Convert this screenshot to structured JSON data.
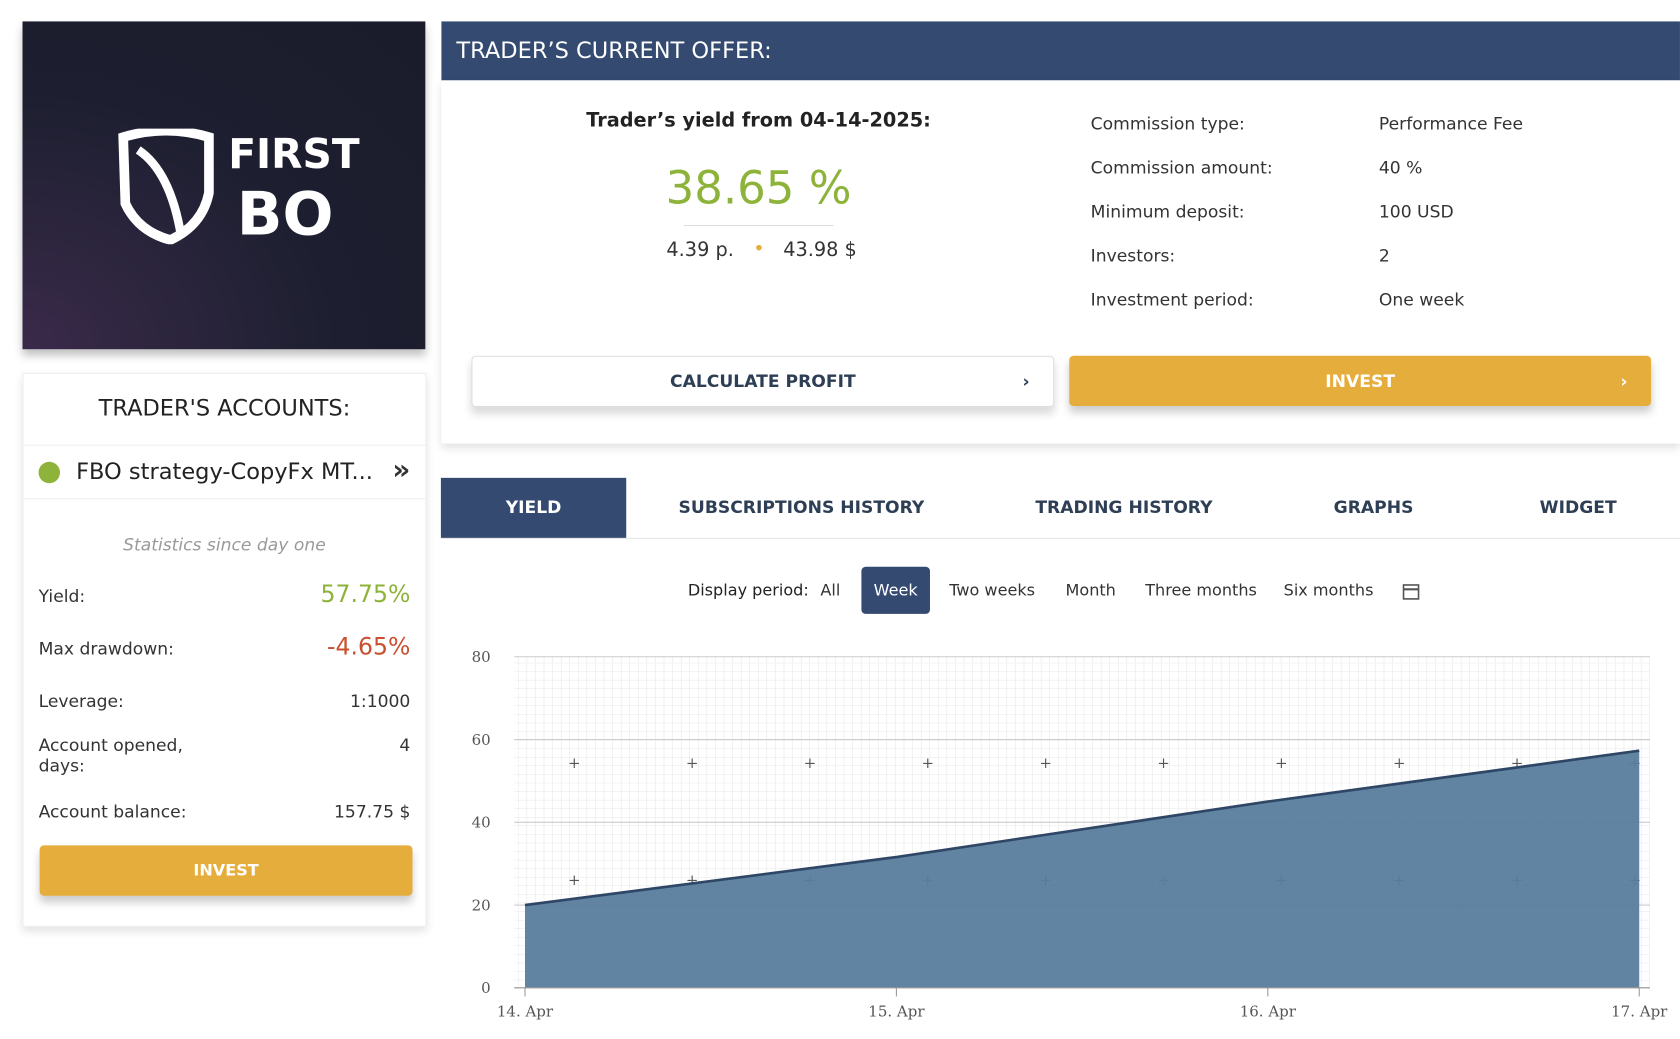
{
  "logo": {
    "line1": "FIRST",
    "line2": "BO"
  },
  "accounts": {
    "title": "TRADER'S ACCOUNTS:",
    "account_name": "FBO strategy-CopyFx MT...",
    "stats_note": "Statistics since day one",
    "rows": [
      [
        "Yield:",
        "57.75%"
      ],
      [
        "Max drawdown:",
        "-4.65%"
      ],
      [
        "Leverage:",
        "1:1000"
      ],
      [
        "Account opened, days:",
        "4"
      ],
      [
        "Account balance:",
        "157.75 $"
      ]
    ],
    "invest_button": "INVEST"
  },
  "offer": {
    "title": "TRADER’S CURRENT OFFER:",
    "yield_label": "Trader’s yield from 04-14-2025:",
    "yield_value": "38.65 %",
    "points": "4.39 p.",
    "profit": "43.98 $",
    "details": [
      [
        "Commission type:",
        "Performance Fee"
      ],
      [
        "Commission amount:",
        "40 %"
      ],
      [
        "Minimum deposit:",
        "100 USD"
      ],
      [
        "Investors:",
        "2"
      ],
      [
        "Investment period:",
        "One week"
      ]
    ],
    "calculate_button": "CALCULATE PROFIT",
    "invest_button": "INVEST"
  },
  "tabs": [
    "YIELD",
    "SUBSCRIPTIONS HISTORY",
    "TRADING HISTORY",
    "GRAPHS",
    "WIDGET"
  ],
  "period": {
    "label": "Display period:",
    "options": [
      "All",
      "Week",
      "Two weeks",
      "Month",
      "Three months",
      "Six months"
    ]
  },
  "chart": {
    "type": "area",
    "categories": [
      "14. Apr",
      "15. Apr",
      "16. Apr",
      "17. Apr"
    ],
    "values": [
      20,
      31.6,
      45,
      57.3
    ],
    "color": "#5a7d9e",
    "line_color": "#2f4766",
    "ylim": [
      0,
      80
    ],
    "yticks": [
      0,
      20,
      40,
      60,
      80
    ],
    "grid": true
  }
}
